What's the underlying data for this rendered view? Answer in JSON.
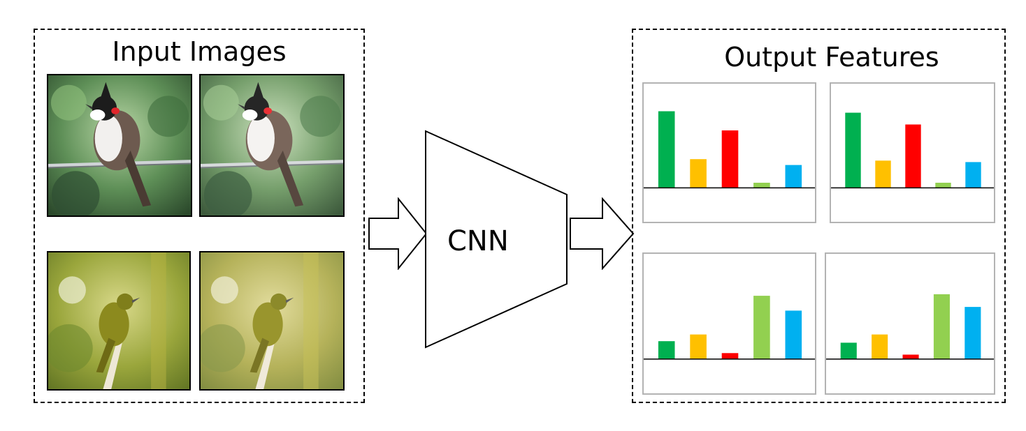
{
  "labels": {
    "input_title": "Input Images",
    "model_label": "CNN",
    "output_title": "Output Features"
  },
  "colors": {
    "green": "#00b050",
    "yellow": "#ffc000",
    "red": "#ff0000",
    "light_green": "#92d050",
    "blue": "#00b0f0"
  },
  "icons": {
    "arrow": "hollow-right-arrow-icon",
    "model": "trapezoid-network-icon"
  },
  "images": [
    {
      "subject": "red-whiskered-bulbul-on-wire",
      "variant": "original"
    },
    {
      "subject": "red-whiskered-bulbul-on-wire",
      "variant": "augmented"
    },
    {
      "subject": "olive-bird-on-branch",
      "variant": "original"
    },
    {
      "subject": "olive-bird-on-branch",
      "variant": "augmented"
    }
  ],
  "chart_data": [
    {
      "type": "bar",
      "title": "",
      "bar_colors": [
        "#00b050",
        "#ffc000",
        "#ff0000",
        "#92d050",
        "#00b0f0"
      ],
      "values": [
        104,
        39,
        78,
        7,
        31
      ],
      "ylim": [
        -46,
        130
      ]
    },
    {
      "type": "bar",
      "title": "",
      "bar_colors": [
        "#00b050",
        "#ffc000",
        "#ff0000",
        "#92d050",
        "#00b0f0"
      ],
      "values": [
        102,
        37,
        86,
        7,
        35
      ],
      "ylim": [
        -46,
        130
      ]
    },
    {
      "type": "bar",
      "title": "",
      "bar_colors": [
        "#00b050",
        "#ffc000",
        "#ff0000",
        "#92d050",
        "#00b0f0"
      ],
      "values": [
        24,
        33,
        8,
        85,
        65
      ],
      "ylim": [
        -46,
        130
      ]
    },
    {
      "type": "bar",
      "title": "",
      "bar_colors": [
        "#00b050",
        "#ffc000",
        "#ff0000",
        "#92d050",
        "#00b0f0"
      ],
      "values": [
        22,
        33,
        6,
        87,
        70
      ],
      "ylim": [
        -46,
        130
      ]
    }
  ]
}
